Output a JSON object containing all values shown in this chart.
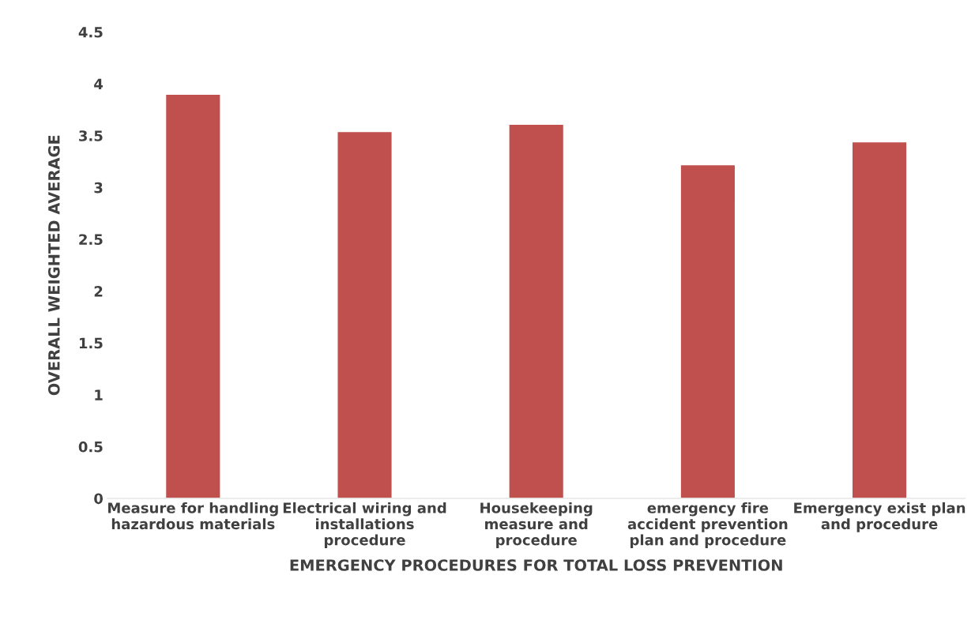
{
  "chart_data": {
    "type": "bar",
    "xlabel": "EMERGENCY PROCEDURES FOR TOTAL LOSS PREVENTION",
    "ylabel": "OVERALL WEIGHTED AVERAGE",
    "categories": [
      "Measure for handling\nhazardous materials",
      "Electrical wiring and\ninstallations\nprocedure",
      "Housekeeping\nmeasure and\nprocedure",
      "emergency fire\naccident prevention\nplan and procedure",
      "Emergency exist plan\nand procedure"
    ],
    "values": [
      3.9,
      3.54,
      3.61,
      3.22,
      3.44
    ],
    "color": "#c0504d",
    "ylim": [
      0,
      4.5
    ],
    "yticks": [
      0,
      0.5,
      1,
      1.5,
      2,
      2.5,
      3,
      3.5,
      4,
      4.5
    ],
    "grid": false,
    "legend": false
  }
}
